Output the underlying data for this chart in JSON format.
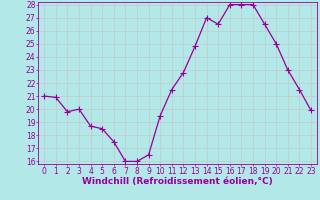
{
  "x": [
    0,
    1,
    2,
    3,
    4,
    5,
    6,
    7,
    8,
    9,
    10,
    11,
    12,
    13,
    14,
    15,
    16,
    17,
    18,
    19,
    20,
    21,
    22,
    23
  ],
  "y": [
    21,
    20.9,
    19.8,
    20,
    18.7,
    18.5,
    17.5,
    16,
    16,
    16.5,
    19.5,
    21.5,
    22.8,
    24.8,
    27,
    26.5,
    28,
    28,
    28,
    26.5,
    25,
    23,
    21.5,
    19.9
  ],
  "line_color": "#990099",
  "marker_color": "#990099",
  "bg_color": "#b2e8e8",
  "grid_color": "#c8c8c8",
  "xlabel": "Windchill (Refroidissement éolien,°C)",
  "ylim": [
    16,
    28
  ],
  "xlim": [
    -0.5,
    23.5
  ],
  "yticks": [
    16,
    17,
    18,
    19,
    20,
    21,
    22,
    23,
    24,
    25,
    26,
    27,
    28
  ],
  "xticks": [
    0,
    1,
    2,
    3,
    4,
    5,
    6,
    7,
    8,
    9,
    10,
    11,
    12,
    13,
    14,
    15,
    16,
    17,
    18,
    19,
    20,
    21,
    22,
    23
  ],
  "xlabel_fontsize": 6.5,
  "tick_fontsize": 5.5,
  "marker_size": 2.5,
  "line_width": 0.9
}
